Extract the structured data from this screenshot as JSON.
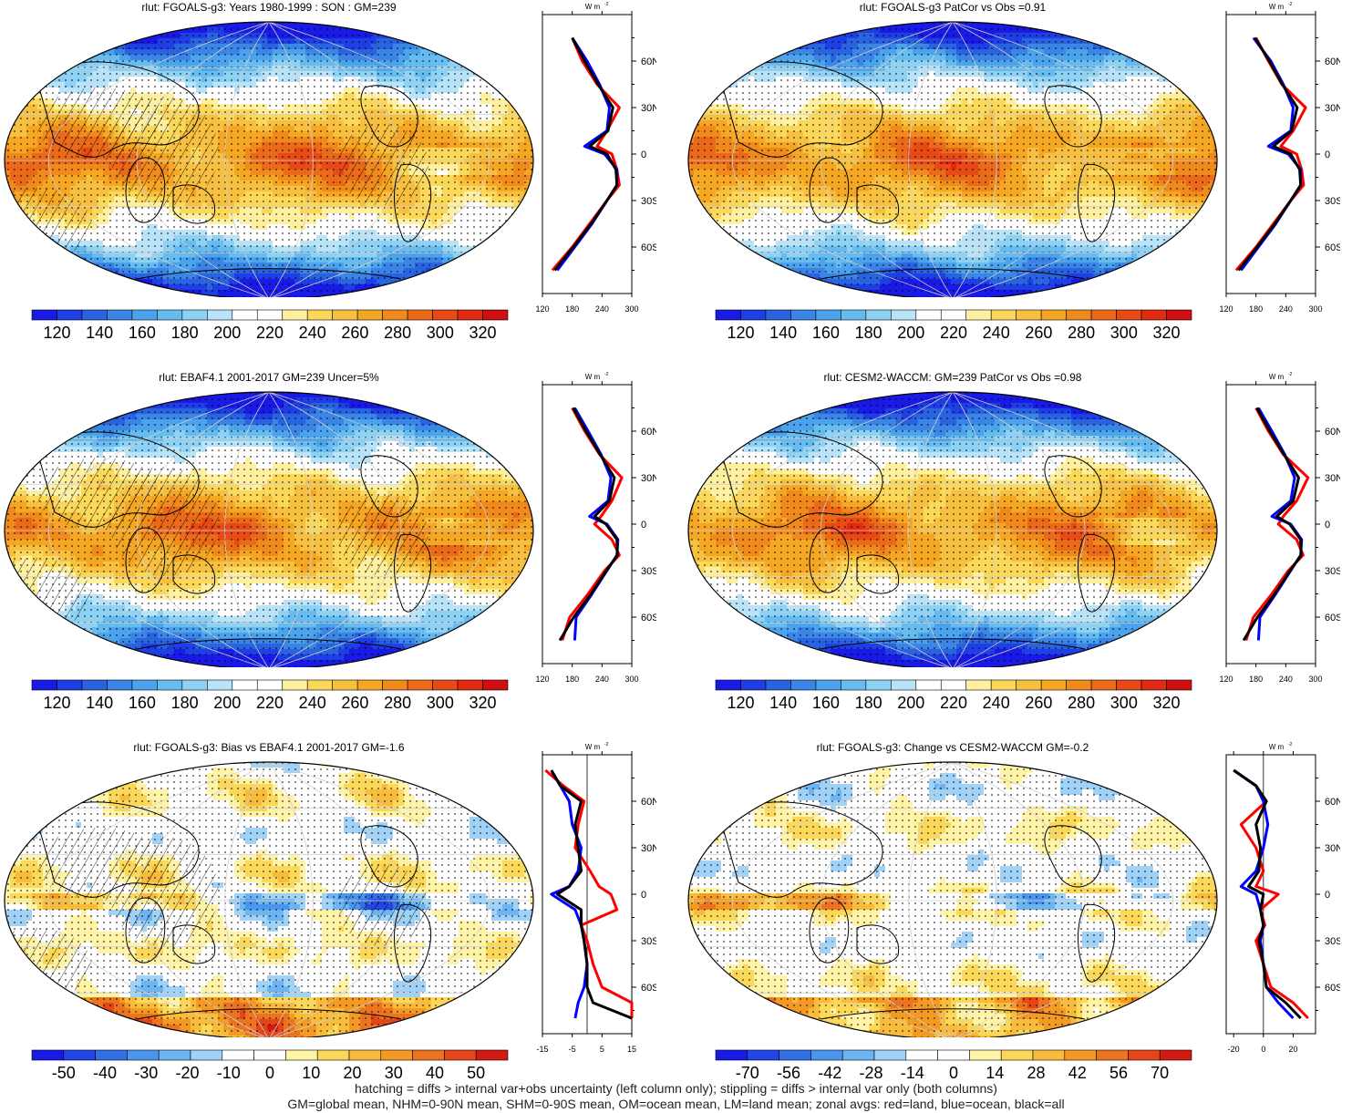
{
  "panels": [
    {
      "title": "rlut: FGOALS-g3: Years 1980-1999 : SON : GM=239",
      "kind": "abs",
      "pattern": 0,
      "hatch": true,
      "colorbar": [
        "120",
        "140",
        "160",
        "180",
        "200",
        "220",
        "240",
        "260",
        "280",
        "300",
        "320"
      ],
      "profile_unit": "W m",
      "profile_xticks": [
        "120",
        "180",
        "240",
        "300"
      ],
      "profile_yticks": [
        "60N",
        "30N",
        "0",
        "30S",
        "60S"
      ]
    },
    {
      "title": "rlut: FGOALS-g3 PatCor vs Obs =0.91",
      "kind": "abs",
      "pattern": 1,
      "hatch": false,
      "colorbar": [
        "120",
        "140",
        "160",
        "180",
        "200",
        "220",
        "240",
        "260",
        "280",
        "300",
        "320"
      ],
      "profile_unit": "W m",
      "profile_xticks": [
        "120",
        "180",
        "240",
        "300"
      ],
      "profile_yticks": [
        "60N",
        "30N",
        "0",
        "30S",
        "60S"
      ]
    },
    {
      "title": "rlut: EBAF4.1 2001-2017 GM=239 Uncer=5%",
      "kind": "abs",
      "pattern": 2,
      "hatch": true,
      "colorbar": [
        "120",
        "140",
        "160",
        "180",
        "200",
        "220",
        "240",
        "260",
        "280",
        "300",
        "320"
      ],
      "profile_unit": "W m",
      "profile_xticks": [
        "120",
        "180",
        "240",
        "300"
      ],
      "profile_yticks": [
        "60N",
        "30N",
        "0",
        "30S",
        "60S"
      ]
    },
    {
      "title": "rlut: CESM2-WACCM: GM=239 PatCor vs Obs =0.98",
      "kind": "abs",
      "pattern": 3,
      "hatch": false,
      "colorbar": [
        "120",
        "140",
        "160",
        "180",
        "200",
        "220",
        "240",
        "260",
        "280",
        "300",
        "320"
      ],
      "profile_unit": "W m",
      "profile_xticks": [
        "120",
        "180",
        "240",
        "300"
      ],
      "profile_yticks": [
        "60N",
        "30N",
        "0",
        "30S",
        "60S"
      ]
    },
    {
      "title": "rlut: FGOALS-g3: Bias vs EBAF4.1 2001-2017  GM=-1.6",
      "kind": "diff",
      "pattern": 4,
      "hatch": true,
      "colorbar": [
        "-50",
        "-40",
        "-30",
        "-20",
        "-10",
        "0",
        "10",
        "20",
        "30",
        "40",
        "50"
      ],
      "profile_unit": "W m",
      "profile_xticks": [
        "-15",
        "-5",
        "5",
        "15"
      ],
      "profile_yticks": [
        "60N",
        "30N",
        "0",
        "30S",
        "60S"
      ]
    },
    {
      "title": "rlut: FGOALS-g3: Change vs CESM2-WACCM GM=-0.2",
      "kind": "diff",
      "pattern": 5,
      "hatch": false,
      "colorbar": [
        "-70",
        "-56",
        "-42",
        "-28",
        "-14",
        "0",
        "14",
        "28",
        "42",
        "56",
        "70"
      ],
      "profile_unit": "W m",
      "profile_xticks": [
        "-20",
        "0",
        "20"
      ],
      "profile_yticks": [
        "60N",
        "30N",
        "0",
        "30S",
        "60S"
      ]
    }
  ],
  "colors": {
    "abs_palette": [
      "#1a1ae6",
      "#1f3fe6",
      "#2a63e0",
      "#3a85e6",
      "#4aa3ec",
      "#66bcf0",
      "#8dd1f5",
      "#b9e3f8",
      "#ffffff",
      "#ffffff",
      "#fff0a0",
      "#fcd85a",
      "#f8c040",
      "#f5a623",
      "#f08a1d",
      "#eb6a1a",
      "#e84a16",
      "#e22a12",
      "#d01010"
    ],
    "diff_palette": [
      "#1a1ae6",
      "#2445e6",
      "#3370e6",
      "#4a96ee",
      "#6cb5f2",
      "#9fd2f6",
      "#ffffff",
      "#ffffff",
      "#fff3a8",
      "#fcd85a",
      "#f8bb3c",
      "#f39a24",
      "#ec7420",
      "#e4461a",
      "#d01a12"
    ],
    "land": "#ff0000",
    "ocean": "#0000ff",
    "all": "#000000"
  },
  "chart_data": [
    {
      "type": "heatmap",
      "title": "rlut: FGOALS-g3: Years 1980-1999 : SON : GM=239",
      "colorbar_ticks": [
        120,
        140,
        160,
        180,
        200,
        220,
        240,
        260,
        280,
        300,
        320
      ],
      "zonal_profile": {
        "xlabel": "W m-2",
        "xlim": [
          120,
          300
        ],
        "lat": [
          75,
          60,
          45,
          30,
          15,
          5,
          0,
          -10,
          -20,
          -30,
          -45,
          -60,
          -75
        ],
        "land": [
          180,
          200,
          230,
          275,
          250,
          230,
          260,
          270,
          275,
          250,
          215,
          180,
          140
        ],
        "ocean": [
          180,
          210,
          235,
          255,
          250,
          205,
          245,
          270,
          270,
          250,
          220,
          185,
          150
        ],
        "all": [
          180,
          205,
          232,
          262,
          252,
          215,
          250,
          268,
          270,
          250,
          218,
          182,
          145
        ]
      }
    },
    {
      "type": "heatmap",
      "title": "rlut: FGOALS-g3 PatCor vs Obs =0.91",
      "colorbar_ticks": [
        120,
        140,
        160,
        180,
        200,
        220,
        240,
        260,
        280,
        300,
        320
      ],
      "zonal_profile": {
        "xlabel": "W m-2",
        "xlim": [
          120,
          300
        ],
        "lat": [
          75,
          60,
          45,
          30,
          15,
          5,
          0,
          -10,
          -20,
          -30,
          -45,
          -60,
          -75
        ],
        "land": [
          180,
          205,
          232,
          280,
          255,
          230,
          262,
          272,
          276,
          250,
          215,
          180,
          140
        ],
        "ocean": [
          175,
          210,
          235,
          255,
          250,
          205,
          245,
          270,
          270,
          250,
          220,
          185,
          150
        ],
        "all": [
          178,
          207,
          233,
          263,
          252,
          215,
          250,
          268,
          270,
          250,
          218,
          182,
          145
        ]
      }
    },
    {
      "type": "heatmap",
      "title": "rlut: EBAF4.1 2001-2017 GM=239 Uncer=5%",
      "colorbar_ticks": [
        120,
        140,
        160,
        180,
        200,
        220,
        240,
        260,
        280,
        300,
        320
      ],
      "zonal_profile": {
        "xlabel": "W m-2",
        "xlim": [
          120,
          300
        ],
        "lat": [
          75,
          60,
          45,
          30,
          15,
          5,
          0,
          -10,
          -20,
          -30,
          -45,
          -60,
          -75
        ],
        "land": [
          180,
          205,
          235,
          280,
          260,
          238,
          225,
          260,
          275,
          245,
          212,
          175,
          160
        ],
        "ocean": [
          185,
          212,
          238,
          258,
          252,
          215,
          250,
          272,
          270,
          250,
          220,
          188,
          185
        ],
        "all": [
          182,
          208,
          236,
          265,
          255,
          225,
          248,
          270,
          271,
          249,
          218,
          183,
          155
        ]
      }
    },
    {
      "type": "heatmap",
      "title": "rlut: CESM2-WACCM: GM=239 PatCor vs Obs =0.98",
      "colorbar_ticks": [
        120,
        140,
        160,
        180,
        200,
        220,
        240,
        260,
        280,
        300,
        320
      ],
      "zonal_profile": {
        "xlabel": "W m-2",
        "xlim": [
          120,
          300
        ],
        "lat": [
          75,
          60,
          45,
          30,
          15,
          5,
          0,
          -10,
          -20,
          -30,
          -45,
          -60,
          -75
        ],
        "land": [
          180,
          205,
          235,
          285,
          262,
          235,
          225,
          262,
          275,
          245,
          212,
          175,
          160
        ],
        "ocean": [
          185,
          212,
          238,
          258,
          250,
          212,
          250,
          272,
          270,
          250,
          220,
          188,
          185
        ],
        "all": [
          182,
          208,
          236,
          266,
          255,
          222,
          248,
          270,
          271,
          249,
          218,
          183,
          155
        ]
      }
    },
    {
      "type": "heatmap",
      "title": "rlut: FGOALS-g3: Bias vs EBAF4.1 2001-2017  GM=-1.6",
      "colorbar_ticks": [
        -50,
        -40,
        -30,
        -20,
        -10,
        0,
        10,
        20,
        30,
        40,
        50
      ],
      "zonal_profile": {
        "xlabel": "W m-2",
        "xlim": [
          -15,
          15
        ],
        "lat": [
          80,
          70,
          60,
          45,
          30,
          15,
          5,
          0,
          -10,
          -20,
          -30,
          -45,
          -60,
          -70,
          -80
        ],
        "land": [
          -14,
          -8,
          -1,
          -3,
          -4,
          1,
          4,
          8,
          10,
          -2,
          0,
          2,
          5,
          15,
          15
        ],
        "ocean": [
          -12,
          -9,
          -6,
          -5,
          -2,
          -3,
          -6,
          -12,
          -4,
          -2,
          -1,
          0,
          -1,
          -3,
          -4
        ],
        "all": [
          -12,
          -9,
          -2,
          -4,
          -3,
          -2,
          -6,
          -10,
          -2,
          -2,
          -1,
          0,
          0,
          2,
          15
        ]
      }
    },
    {
      "type": "heatmap",
      "title": "rlut: FGOALS-g3: Change vs CESM2-WACCM GM=-0.2",
      "colorbar_ticks": [
        -70,
        -56,
        -42,
        -28,
        -14,
        0,
        14,
        28,
        42,
        56,
        70
      ],
      "zonal_profile": {
        "xlabel": "W m-2",
        "xlim": [
          -25,
          35
        ],
        "lat": [
          80,
          70,
          60,
          45,
          30,
          15,
          5,
          0,
          -10,
          -20,
          -30,
          -45,
          -60,
          -70,
          -80
        ],
        "land": [
          -20,
          -5,
          2,
          -15,
          -5,
          0,
          -5,
          10,
          -2,
          1,
          -5,
          0,
          5,
          20,
          30
        ],
        "ocean": [
          -20,
          -5,
          0,
          3,
          0,
          -5,
          -15,
          -5,
          -2,
          0,
          -2,
          0,
          2,
          10,
          20
        ],
        "all": [
          -20,
          -5,
          2,
          -5,
          -2,
          -3,
          -10,
          0,
          -2,
          0,
          -3,
          0,
          2,
          15,
          25
        ]
      }
    }
  ],
  "footer": {
    "line1": "hatching = diffs > internal var+obs uncertainty (left column only); stippling = diffs > internal var only (both columns)",
    "line2": "GM=global mean, NHM=0-90N mean, SHM=0-90S mean, OM=ocean mean, LM=land mean; zonal avgs: red=land, blue=ocean, black=all"
  }
}
